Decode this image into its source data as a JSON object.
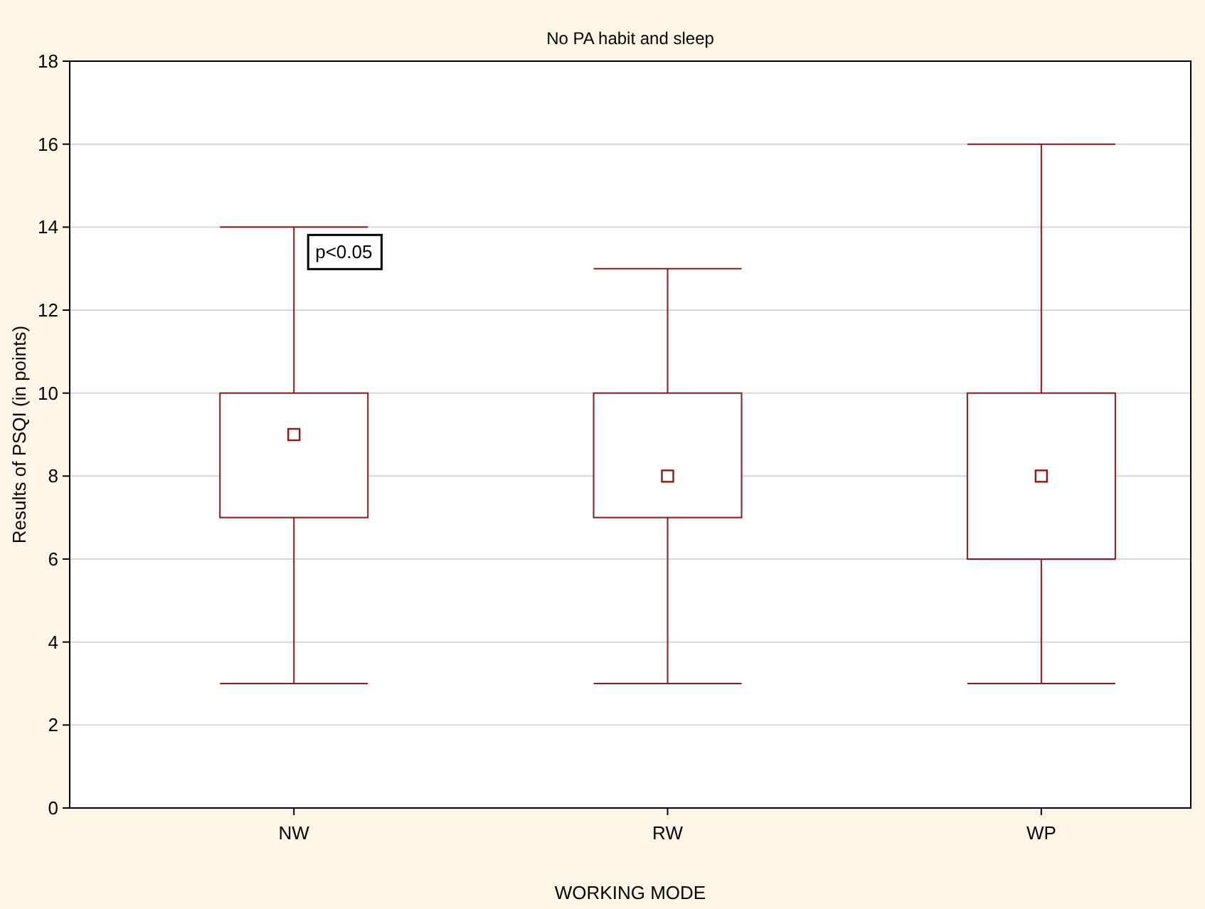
{
  "chart_data": {
    "type": "box",
    "title": "No PA habit and sleep",
    "xlabel": "WORKING MODE",
    "ylabel": "Results of PSQI (in points)",
    "categories": [
      "NW",
      "RW",
      "WP"
    ],
    "boxes": [
      {
        "low": 3,
        "q1": 7,
        "median": 9,
        "q3": 10,
        "high": 14
      },
      {
        "low": 3,
        "q1": 7,
        "median": 8,
        "q3": 10,
        "high": 13
      },
      {
        "low": 3,
        "q1": 6,
        "median": 8,
        "q3": 10,
        "high": 16
      }
    ],
    "color": "#8b1a1a",
    "marker": "square",
    "ylim": [
      0,
      18
    ],
    "yticks": [
      0,
      2,
      4,
      6,
      8,
      10,
      12,
      14,
      16,
      18
    ],
    "grid": "y",
    "annotations": [
      "p<0.05"
    ]
  }
}
